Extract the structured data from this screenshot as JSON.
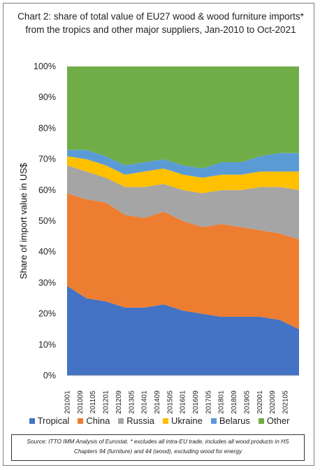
{
  "chart_data": {
    "type": "area",
    "stacked": "percent",
    "title": "Chart 2: share of total value of EU27 wood & wood furniture imports* from the tropics and other major suppliers, Jan-2010 to Oct-2021",
    "xlabel": "",
    "ylabel": "Share of import value in US$",
    "ylim": [
      0,
      100
    ],
    "y_ticks": [
      "0%",
      "10%",
      "20%",
      "30%",
      "40%",
      "50%",
      "60%",
      "70%",
      "80%",
      "90%",
      "100%"
    ],
    "x_ticks": [
      "201001",
      "201009",
      "201105",
      "201201",
      "201209",
      "201305",
      "201401",
      "201409",
      "201505",
      "201601",
      "201609",
      "201705",
      "201801",
      "201809",
      "201905",
      "202001",
      "202009",
      "202105"
    ],
    "legend_position": "bottom",
    "grid": false,
    "x": [
      "201001",
      "201101",
      "201201",
      "201301",
      "201401",
      "201501",
      "201601",
      "201701",
      "201801",
      "201901",
      "202001",
      "202101",
      "202110"
    ],
    "series": [
      {
        "name": "Tropical",
        "color": "#4472c4",
        "values": [
          29,
          25,
          24,
          22,
          22,
          23,
          21,
          20,
          19,
          19,
          19,
          18,
          15
        ]
      },
      {
        "name": "China",
        "color": "#ed7d31",
        "values": [
          30,
          32,
          32,
          30,
          29,
          30,
          29,
          28,
          30,
          29,
          28,
          28,
          29
        ]
      },
      {
        "name": "Russia",
        "color": "#a5a5a5",
        "values": [
          9,
          9,
          8,
          9,
          10,
          9,
          10,
          11,
          11,
          12,
          14,
          15,
          16
        ]
      },
      {
        "name": "Ukraine",
        "color": "#ffc000",
        "values": [
          3,
          4,
          4,
          4,
          5,
          5,
          5,
          5,
          5,
          5,
          5,
          5,
          6
        ]
      },
      {
        "name": "Belarus",
        "color": "#5b9bd5",
        "values": [
          2,
          3,
          3,
          3,
          3,
          3,
          3,
          3,
          4,
          4,
          5,
          6,
          6
        ]
      },
      {
        "name": "Other",
        "color": "#70ad47",
        "values": [
          27,
          27,
          29,
          32,
          31,
          30,
          32,
          33,
          31,
          31,
          29,
          28,
          28
        ]
      }
    ]
  },
  "source": "Source: ITTO IMM Analysis of Eurostat. * excludes all intra-EU trade, includes all wood products in HS Chapters 94 (furniture) and 44 (wood), excluding wood for energy"
}
